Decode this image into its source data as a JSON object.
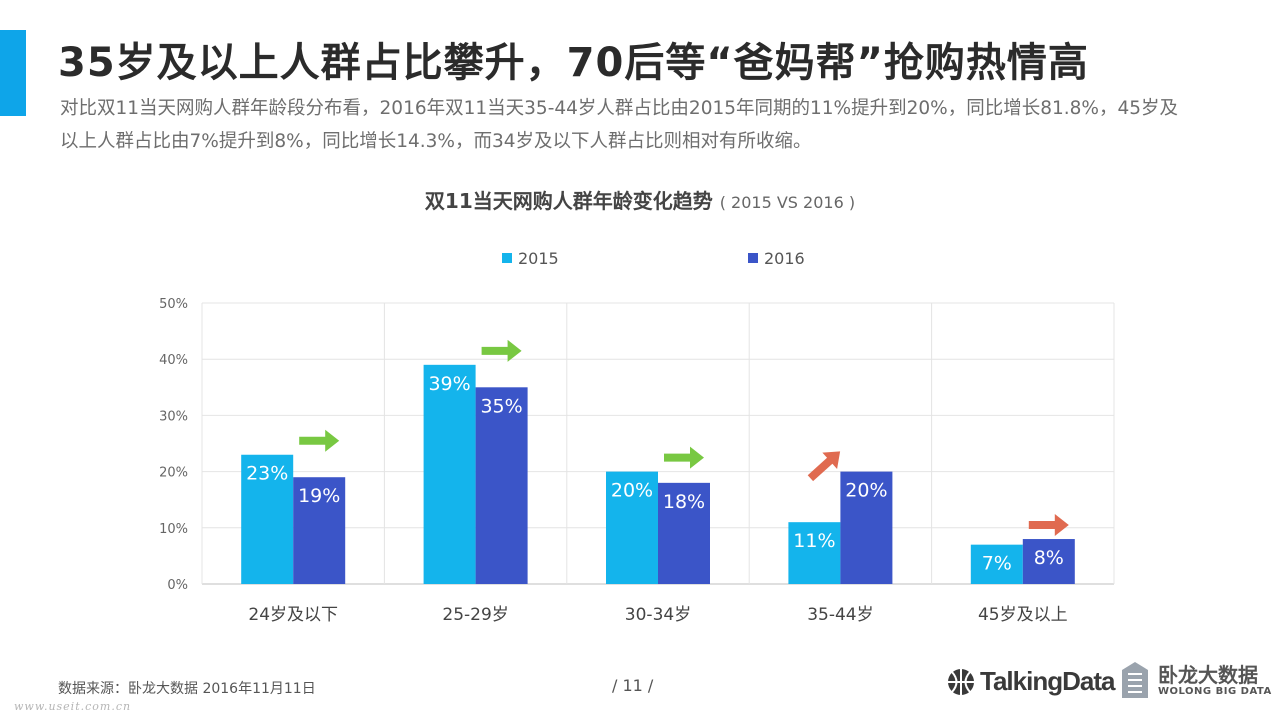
{
  "colors": {
    "accent": "#0ea5e9",
    "series_2015": "#14b4ec",
    "series_2016": "#3b55c8",
    "arrow_down": "#78c842",
    "arrow_up": "#e06a50"
  },
  "header": {
    "title": "35岁及以上人群占比攀升，70后等“爸妈帮”抢购热情高",
    "subtitle": "对比双11当天网购人群年龄段分布看，2016年双11当天35-44岁人群占比由2015年同期的11%提升到20%，同比增长81.8%，45岁及以上人群占比由7%提升到8%，同比增长14.3%，而34岁及以下人群占比则相对有所收缩。"
  },
  "chart_data": {
    "type": "bar",
    "title": "双11当天网购人群年龄变化趋势",
    "title_suffix": "( 2015 VS 2016 )",
    "categories": [
      "24岁及以下",
      "25-29岁",
      "30-34岁",
      "35-44岁",
      "45岁及以上"
    ],
    "series": [
      {
        "name": "2015",
        "values": [
          23,
          39,
          20,
          11,
          7
        ],
        "labels": [
          "23%",
          "39%",
          "20%",
          "11%",
          "7%"
        ]
      },
      {
        "name": "2016",
        "values": [
          19,
          35,
          18,
          20,
          8
        ],
        "labels": [
          "19%",
          "35%",
          "18%",
          "20%",
          "8%"
        ]
      }
    ],
    "trend_icons": [
      "arrow-right-icon",
      "arrow-right-icon",
      "arrow-right-icon",
      "arrow-up-right-icon",
      "arrow-right-icon"
    ],
    "trend_colors": [
      "#78c842",
      "#78c842",
      "#78c842",
      "#e06a50",
      "#e06a50"
    ],
    "ylim": [
      0,
      50
    ],
    "yticks": [
      0,
      10,
      20,
      30,
      40,
      50
    ],
    "ytick_labels": [
      "0%",
      "10%",
      "20%",
      "30%",
      "40%",
      "50%"
    ],
    "grid": true,
    "legend_position": "top-center"
  },
  "footer": {
    "source": "数据来源：卧龙大数据  2016年11月11日",
    "page": "/  11  /",
    "watermark": "www.useit.com.cn",
    "logo_talkingdata": "TalkingData",
    "logo_wolong_cn": "卧龙大数据",
    "logo_wolong_en": "WOLONG BIG DATA"
  }
}
